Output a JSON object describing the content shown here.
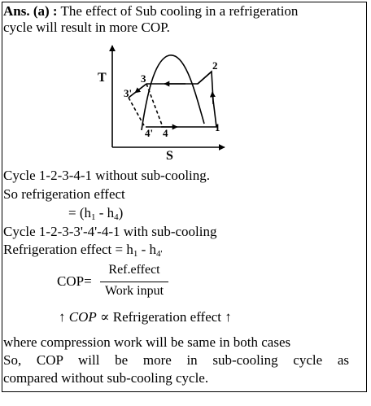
{
  "answer": {
    "label": "Ans. (a) :",
    "intro_1": "The effect of Sub cooling in a refrigeration",
    "intro_2": "cycle will result in more COP."
  },
  "diagram": {
    "axis_y": "T",
    "axis_x": "S",
    "points": {
      "p1": "1",
      "p2": "2",
      "p3": "3",
      "p3p": "3'",
      "p4": "4",
      "p4p": "4'"
    }
  },
  "lines": {
    "l1": "Cycle 1-2-3-4-1 without sub-cooling.",
    "l2": "So refrigeration effect",
    "l3_main": "= (h",
    "l3_sub1": "1",
    "l3_mid": " - h",
    "l3_sub2": "4",
    "l3_end": ")",
    "l4": "Cycle 1-2-3-3'-4'-4-1 with sub-cooling",
    "l5_main": "Refrigeration effect = h",
    "l5_sub1": "1",
    "l5_mid": " - h",
    "l5_sub2": "4'"
  },
  "formula": {
    "lhs": "COP=",
    "numerator": "Ref.effect",
    "denominator": "Work input",
    "arrow_left": "↑",
    "cop": "COP",
    "propto": "∝",
    "rhs": "Refrigeration effect",
    "arrow_right": "↑"
  },
  "conclusion": {
    "c1": "where compression work will be same in both cases",
    "c2": "So, COP will be more in sub-cooling cycle as",
    "c3": "compared without sub-cooling cycle."
  }
}
